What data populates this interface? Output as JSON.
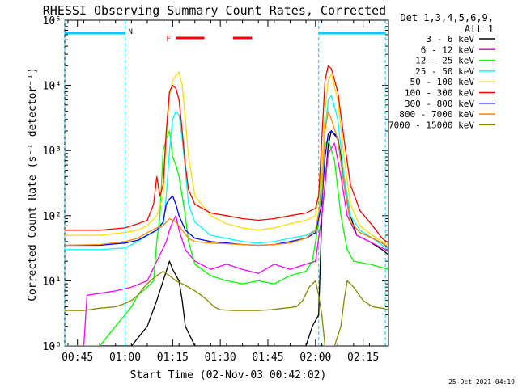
{
  "chart_data": {
    "type": "line",
    "title": "RHESSI Observing Summary Count Rates, Corrected",
    "xlabel": "Start Time (02-Nov-03 00:42:02)",
    "ylabel": "Corrected Count Rate (s⁻¹ detector⁻¹)",
    "x_ticks": [
      "00:45",
      "01:00",
      "01:15",
      "01:30",
      "01:45",
      "02:00",
      "02:15"
    ],
    "x_tick_minutes": [
      3,
      18,
      33,
      48,
      63,
      78,
      93
    ],
    "xlim_minutes": [
      -1,
      101
    ],
    "y_scale": "log",
    "ylim": [
      1,
      100000
    ],
    "y_ticks": [
      "10⁰",
      "10¹",
      "10²",
      "10³",
      "10⁴",
      "10⁵"
    ],
    "legend": {
      "header1": "Det 1,3,4,5,6,9,",
      "header2": "Att 1",
      "placement": "outside-right"
    },
    "series": [
      {
        "name": "3 - 6 keV",
        "color": "#000000",
        "points": [
          [
            -1,
            1
          ],
          [
            20,
            1
          ],
          [
            25,
            2
          ],
          [
            28,
            5
          ],
          [
            30,
            10
          ],
          [
            32,
            20
          ],
          [
            33,
            15
          ],
          [
            35,
            10
          ],
          [
            36,
            5
          ],
          [
            37,
            2
          ],
          [
            40,
            1
          ],
          [
            75,
            1
          ],
          [
            77,
            2
          ],
          [
            79,
            3
          ],
          [
            80,
            100
          ],
          [
            81,
            300
          ],
          [
            82,
            1200
          ],
          [
            83,
            2000
          ],
          [
            85,
            1600
          ],
          [
            87,
            400
          ],
          [
            89,
            100
          ],
          [
            91,
            50
          ],
          [
            95,
            40
          ],
          [
            99,
            30
          ],
          [
            101,
            25
          ]
        ]
      },
      {
        "name": "6 - 12 keV",
        "color": "#ff00ff",
        "points": [
          [
            -1,
            1
          ],
          [
            5,
            1
          ],
          [
            6,
            6
          ],
          [
            15,
            7
          ],
          [
            20,
            8
          ],
          [
            25,
            10
          ],
          [
            28,
            20
          ],
          [
            31,
            40
          ],
          [
            32,
            60
          ],
          [
            33,
            80
          ],
          [
            34,
            100
          ],
          [
            35,
            60
          ],
          [
            37,
            30
          ],
          [
            40,
            20
          ],
          [
            45,
            15
          ],
          [
            50,
            18
          ],
          [
            55,
            15
          ],
          [
            60,
            13
          ],
          [
            65,
            18
          ],
          [
            70,
            15
          ],
          [
            75,
            18
          ],
          [
            78,
            20
          ],
          [
            80,
            100
          ],
          [
            81,
            300
          ],
          [
            82,
            900
          ],
          [
            84,
            1300
          ],
          [
            86,
            400
          ],
          [
            88,
            100
          ],
          [
            91,
            50
          ],
          [
            95,
            40
          ],
          [
            99,
            32
          ],
          [
            101,
            28
          ]
        ]
      },
      {
        "name": "12 - 25 keV",
        "color": "#00ff00",
        "points": [
          [
            -1,
            1
          ],
          [
            5,
            1
          ],
          [
            10,
            1
          ],
          [
            15,
            2
          ],
          [
            18,
            3
          ],
          [
            20,
            4
          ],
          [
            22,
            6
          ],
          [
            25,
            8
          ],
          [
            27,
            10
          ],
          [
            28,
            40
          ],
          [
            29,
            100
          ],
          [
            30,
            1000
          ],
          [
            31,
            1500
          ],
          [
            32,
            2000
          ],
          [
            33,
            800
          ],
          [
            34,
            600
          ],
          [
            35,
            400
          ],
          [
            36,
            200
          ],
          [
            37,
            100
          ],
          [
            38,
            40
          ],
          [
            40,
            18
          ],
          [
            45,
            12
          ],
          [
            50,
            10
          ],
          [
            55,
            9
          ],
          [
            60,
            10
          ],
          [
            65,
            9
          ],
          [
            70,
            12
          ],
          [
            75,
            14
          ],
          [
            77,
            20
          ],
          [
            79,
            80
          ],
          [
            80,
            500
          ],
          [
            81,
            1200
          ],
          [
            82,
            1500
          ],
          [
            84,
            700
          ],
          [
            86,
            100
          ],
          [
            88,
            30
          ],
          [
            90,
            20
          ],
          [
            95,
            18
          ],
          [
            101,
            15
          ]
        ]
      },
      {
        "name": "25 - 50 keV",
        "color": "#00ffff",
        "points": [
          [
            -1,
            30
          ],
          [
            10,
            30
          ],
          [
            18,
            32
          ],
          [
            22,
            40
          ],
          [
            25,
            50
          ],
          [
            28,
            60
          ],
          [
            30,
            70
          ],
          [
            31,
            200
          ],
          [
            32,
            1000
          ],
          [
            33,
            3000
          ],
          [
            34,
            4000
          ],
          [
            35,
            3500
          ],
          [
            36,
            1500
          ],
          [
            37,
            500
          ],
          [
            38,
            150
          ],
          [
            40,
            80
          ],
          [
            45,
            50
          ],
          [
            50,
            45
          ],
          [
            55,
            40
          ],
          [
            60,
            38
          ],
          [
            65,
            40
          ],
          [
            70,
            45
          ],
          [
            75,
            50
          ],
          [
            78,
            60
          ],
          [
            80,
            200
          ],
          [
            81,
            2000
          ],
          [
            82,
            6000
          ],
          [
            83,
            7000
          ],
          [
            85,
            3000
          ],
          [
            87,
            400
          ],
          [
            89,
            100
          ],
          [
            92,
            60
          ],
          [
            96,
            45
          ],
          [
            99,
            35
          ],
          [
            101,
            30
          ]
        ]
      },
      {
        "name": "50 - 100 keV",
        "color": "#ffdd00",
        "points": [
          [
            -1,
            50
          ],
          [
            10,
            50
          ],
          [
            18,
            55
          ],
          [
            22,
            60
          ],
          [
            25,
            70
          ],
          [
            28,
            100
          ],
          [
            30,
            200
          ],
          [
            31,
            1500
          ],
          [
            32,
            7000
          ],
          [
            33,
            12000
          ],
          [
            34,
            14000
          ],
          [
            35,
            16000
          ],
          [
            36,
            10000
          ],
          [
            37,
            3000
          ],
          [
            38,
            800
          ],
          [
            40,
            200
          ],
          [
            45,
            100
          ],
          [
            50,
            75
          ],
          [
            55,
            65
          ],
          [
            60,
            60
          ],
          [
            65,
            65
          ],
          [
            70,
            75
          ],
          [
            75,
            85
          ],
          [
            78,
            100
          ],
          [
            80,
            500
          ],
          [
            81,
            4000
          ],
          [
            82,
            12000
          ],
          [
            83,
            15000
          ],
          [
            85,
            6000
          ],
          [
            87,
            800
          ],
          [
            89,
            150
          ],
          [
            92,
            70
          ],
          [
            96,
            50
          ],
          [
            99,
            40
          ],
          [
            101,
            35
          ]
        ]
      },
      {
        "name": "100 - 300 keV",
        "color": "#ff0000",
        "points": [
          [
            -1,
            60
          ],
          [
            10,
            60
          ],
          [
            18,
            65
          ],
          [
            22,
            75
          ],
          [
            25,
            85
          ],
          [
            27,
            150
          ],
          [
            28,
            400
          ],
          [
            29,
            200
          ],
          [
            30,
            300
          ],
          [
            31,
            2000
          ],
          [
            32,
            8000
          ],
          [
            33,
            10000
          ],
          [
            34,
            9000
          ],
          [
            35,
            6000
          ],
          [
            36,
            2000
          ],
          [
            37,
            600
          ],
          [
            38,
            250
          ],
          [
            40,
            150
          ],
          [
            45,
            110
          ],
          [
            50,
            100
          ],
          [
            55,
            90
          ],
          [
            60,
            85
          ],
          [
            65,
            90
          ],
          [
            70,
            100
          ],
          [
            75,
            110
          ],
          [
            78,
            130
          ],
          [
            79,
            200
          ],
          [
            80,
            1500
          ],
          [
            81,
            12000
          ],
          [
            82,
            20000
          ],
          [
            83,
            18000
          ],
          [
            85,
            8000
          ],
          [
            87,
            1500
          ],
          [
            89,
            300
          ],
          [
            92,
            120
          ],
          [
            96,
            70
          ],
          [
            99,
            45
          ],
          [
            101,
            38
          ]
        ]
      },
      {
        "name": "300 - 800 keV",
        "color": "#0000ff",
        "points": [
          [
            -1,
            35
          ],
          [
            10,
            35
          ],
          [
            18,
            38
          ],
          [
            22,
            42
          ],
          [
            25,
            50
          ],
          [
            28,
            60
          ],
          [
            30,
            80
          ],
          [
            31,
            150
          ],
          [
            32,
            180
          ],
          [
            33,
            200
          ],
          [
            34,
            150
          ],
          [
            35,
            100
          ],
          [
            37,
            60
          ],
          [
            40,
            45
          ],
          [
            45,
            40
          ],
          [
            50,
            38
          ],
          [
            55,
            36
          ],
          [
            60,
            35
          ],
          [
            65,
            36
          ],
          [
            70,
            40
          ],
          [
            75,
            45
          ],
          [
            78,
            55
          ],
          [
            80,
            150
          ],
          [
            81,
            800
          ],
          [
            82,
            1800
          ],
          [
            83,
            2000
          ],
          [
            85,
            1500
          ],
          [
            87,
            300
          ],
          [
            89,
            80
          ],
          [
            92,
            55
          ],
          [
            96,
            45
          ],
          [
            99,
            38
          ],
          [
            101,
            32
          ]
        ]
      },
      {
        "name": "800 - 7000 keV",
        "color": "#ff8800",
        "points": [
          [
            -1,
            35
          ],
          [
            10,
            36
          ],
          [
            18,
            40
          ],
          [
            22,
            45
          ],
          [
            25,
            55
          ],
          [
            28,
            65
          ],
          [
            30,
            70
          ],
          [
            32,
            90
          ],
          [
            34,
            80
          ],
          [
            36,
            60
          ],
          [
            38,
            45
          ],
          [
            40,
            40
          ],
          [
            45,
            38
          ],
          [
            50,
            37
          ],
          [
            55,
            36
          ],
          [
            60,
            35
          ],
          [
            65,
            36
          ],
          [
            70,
            38
          ],
          [
            75,
            45
          ],
          [
            78,
            60
          ],
          [
            80,
            200
          ],
          [
            81,
            2000
          ],
          [
            82,
            4000
          ],
          [
            83,
            3000
          ],
          [
            85,
            1500
          ],
          [
            87,
            300
          ],
          [
            89,
            80
          ],
          [
            92,
            55
          ],
          [
            96,
            45
          ],
          [
            99,
            38
          ],
          [
            101,
            33
          ]
        ]
      },
      {
        "name": "7000 - 15000 keV",
        "color": "#888800",
        "points": [
          [
            -1,
            3.5
          ],
          [
            5,
            3.5
          ],
          [
            10,
            3.8
          ],
          [
            15,
            4
          ],
          [
            18,
            4.5
          ],
          [
            20,
            5
          ],
          [
            22,
            6
          ],
          [
            24,
            8
          ],
          [
            26,
            10
          ],
          [
            28,
            12
          ],
          [
            30,
            14
          ],
          [
            32,
            12
          ],
          [
            34,
            10
          ],
          [
            36,
            9
          ],
          [
            38,
            8
          ],
          [
            40,
            7
          ],
          [
            42,
            6
          ],
          [
            44,
            5
          ],
          [
            46,
            4
          ],
          [
            48,
            3.6
          ],
          [
            52,
            3.5
          ],
          [
            56,
            3.5
          ],
          [
            60,
            3.5
          ],
          [
            64,
            3.6
          ],
          [
            68,
            3.8
          ],
          [
            72,
            4
          ],
          [
            74,
            5
          ],
          [
            76,
            8
          ],
          [
            78,
            10
          ],
          [
            79,
            6
          ],
          [
            80,
            3
          ],
          [
            81,
            1
          ],
          [
            84,
            1
          ],
          [
            86,
            2
          ],
          [
            87,
            5
          ],
          [
            88,
            10
          ],
          [
            90,
            8
          ],
          [
            93,
            5
          ],
          [
            96,
            4
          ],
          [
            99,
            3.8
          ],
          [
            101,
            3.6
          ]
        ]
      }
    ],
    "annotations": [
      {
        "label": "N",
        "color": "#00ccff"
      },
      {
        "label": "F",
        "color": "#ff0000"
      }
    ],
    "night_intervals_minutes": [
      [
        -1,
        18
      ],
      [
        79,
        100
      ]
    ],
    "flare_intervals_minutes": [
      [
        34,
        43
      ],
      [
        52,
        58
      ]
    ]
  },
  "footer": {
    "timestamp": "25-Oct-2021 04:19"
  }
}
